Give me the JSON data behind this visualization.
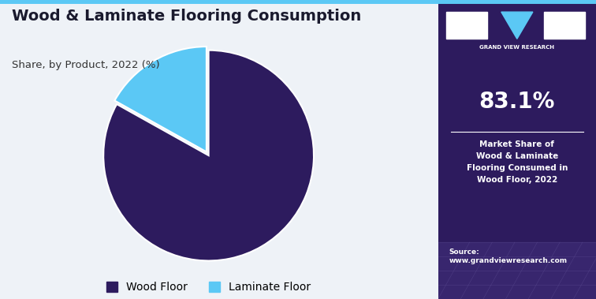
{
  "title": "Wood & Laminate Flooring Consumption",
  "subtitle": "Share, by Product, 2022 (%)",
  "slices": [
    83.1,
    16.9
  ],
  "labels": [
    "Wood Floor",
    "Laminate Floor"
  ],
  "colors": [
    "#2d1b5e",
    "#5bc8f5"
  ],
  "start_angle": 90,
  "explode": [
    0,
    0.04
  ],
  "bg_color": "#eef2f7",
  "right_panel_bg": "#2d1b5e",
  "right_panel_pct": "83.1%",
  "right_panel_text": "Market Share of\nWood & Laminate\nFlooring Consumed in\nWood Floor, 2022",
  "source_text": "Source:\nwww.grandviewresearch.com",
  "title_color": "#1a1a2e",
  "subtitle_color": "#333333",
  "legend_colors": [
    "#2d1b5e",
    "#5bc8f5"
  ],
  "legend_labels": [
    "Wood Floor",
    "Laminate Floor"
  ],
  "top_border_color": "#5bc8f5",
  "gvr_label": "GRAND VIEW RESEARCH",
  "divider_color": "#ffffff"
}
